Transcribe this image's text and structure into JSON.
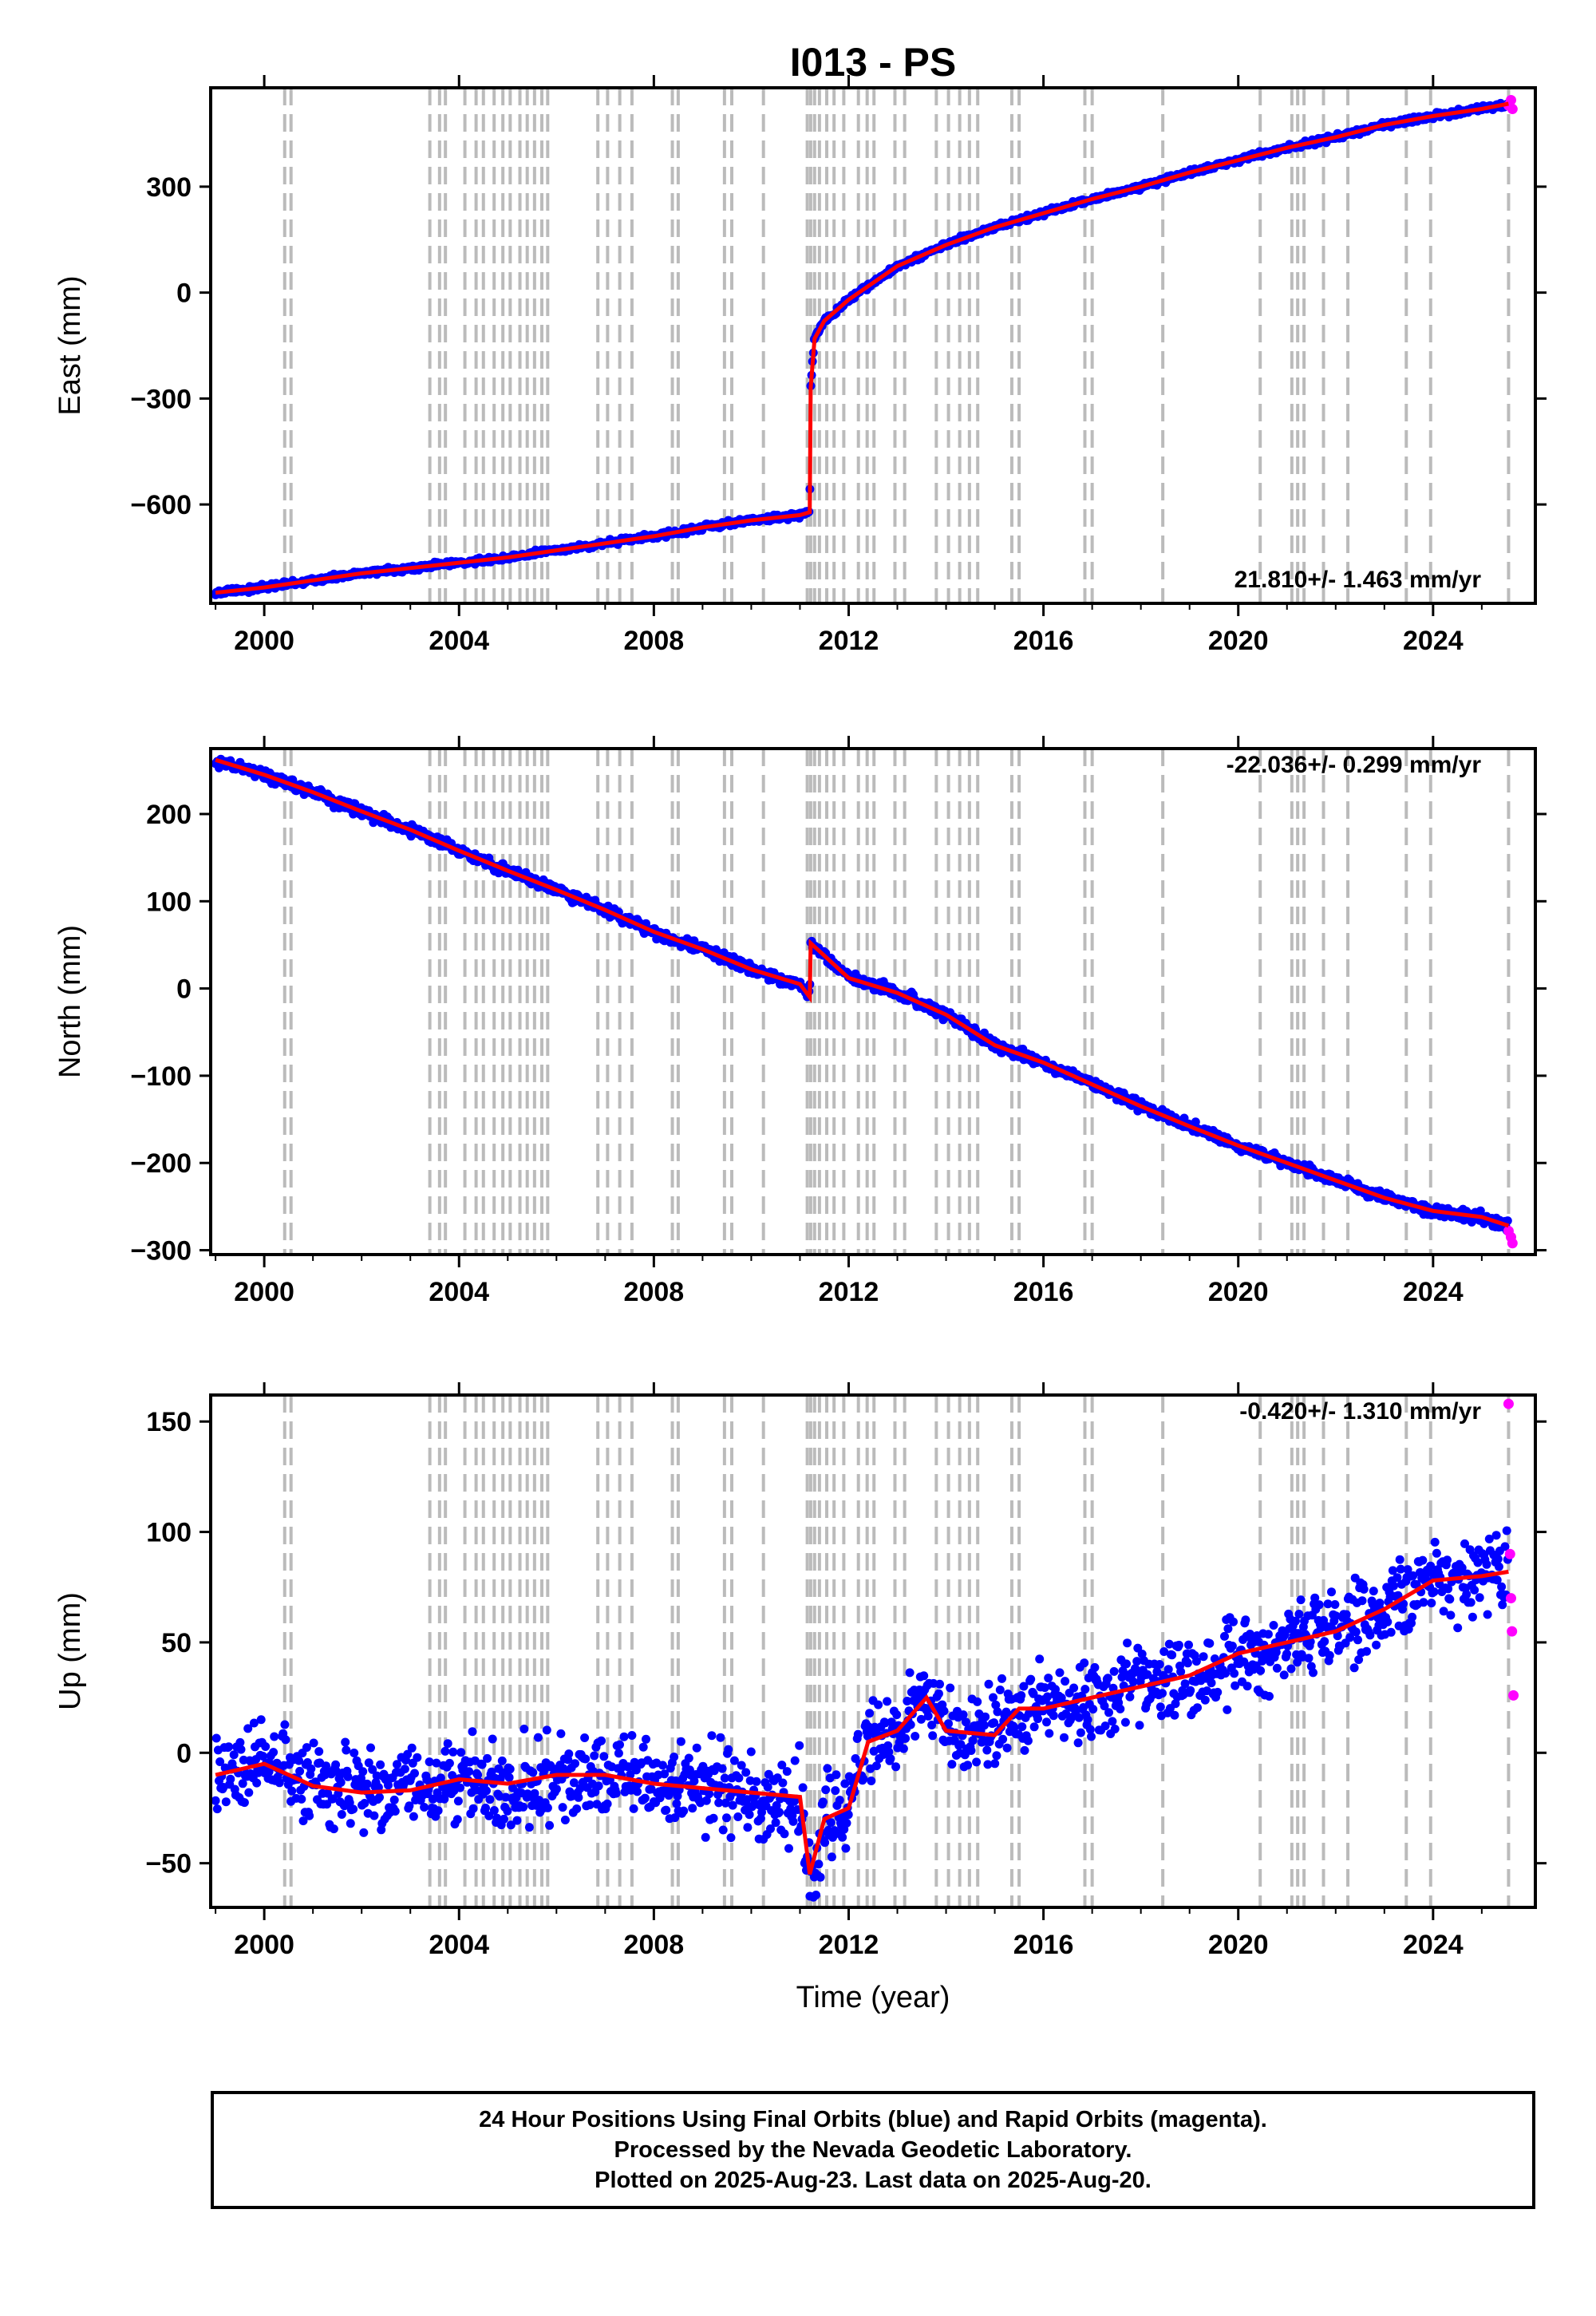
{
  "title": "I013 - PS",
  "xlabel": "Time (year)",
  "x_ticks": [
    2000,
    2004,
    2008,
    2012,
    2016,
    2020,
    2024
  ],
  "xlim": [
    1998.9,
    2026.1
  ],
  "colors": {
    "final": "#0000ff",
    "rapid": "#ff00ff",
    "model": "#ff0000",
    "events": "#bbbbbb"
  },
  "footer": {
    "line1": "24 Hour Positions Using Final Orbits (blue) and Rapid Orbits (magenta).",
    "line2": "Processed by the Nevada Geodetic Laboratory.",
    "line3": "Plotted on 2025-Aug-23. Last data on 2025-Aug-20."
  },
  "chart_data": [
    {
      "type": "scatter",
      "panel": "east",
      "ylabel": "East (mm)",
      "ylim": [
        -880,
        580
      ],
      "y_ticks": [
        -600,
        -300,
        0,
        300
      ],
      "y_tick_labels": [
        "−600",
        "−300",
        "0",
        "300"
      ],
      "rate_label": "21.810+/- 1.463 mm/yr",
      "rate_position": "bottom-right",
      "series": [
        {
          "name": "Final Orbits",
          "color": "#0000ff",
          "x": [
            1999.0,
            2000.0,
            2001.0,
            2002.0,
            2003.0,
            2004.0,
            2005.0,
            2006.0,
            2007.0,
            2008.0,
            2009.0,
            2010.0,
            2011.0,
            2011.2,
            2011.22,
            2011.3,
            2011.5,
            2012.0,
            2013.0,
            2014.0,
            2015.0,
            2016.0,
            2017.0,
            2018.0,
            2019.0,
            2020.0,
            2021.0,
            2022.0,
            2023.0,
            2024.0,
            2025.0,
            2025.55
          ],
          "y": [
            -850,
            -835,
            -815,
            -795,
            -780,
            -765,
            -750,
            -730,
            -710,
            -690,
            -665,
            -645,
            -630,
            -622,
            -270,
            -130,
            -80,
            -20,
            75,
            135,
            185,
            225,
            265,
            300,
            340,
            375,
            410,
            440,
            475,
            500,
            520,
            535
          ]
        },
        {
          "name": "Rapid Orbits",
          "color": "#ff00ff",
          "x": [
            2025.55,
            2025.6,
            2025.63
          ],
          "y": [
            530,
            545,
            520
          ]
        }
      ]
    },
    {
      "type": "scatter",
      "panel": "north",
      "ylabel": "North (mm)",
      "ylim": [
        -305,
        275
      ],
      "y_ticks": [
        -300,
        -200,
        -100,
        0,
        100,
        200
      ],
      "y_tick_labels": [
        "−300",
        "−200",
        "−100",
        "0",
        "100",
        "200"
      ],
      "rate_label": "-22.036+/- 0.299 mm/yr",
      "rate_position": "top-right",
      "series": [
        {
          "name": "Final Orbits",
          "color": "#0000ff",
          "x": [
            1999.0,
            2000.0,
            2001.0,
            2002.0,
            2003.0,
            2004.0,
            2005.0,
            2006.0,
            2007.0,
            2008.0,
            2009.0,
            2010.0,
            2011.0,
            2011.2,
            2011.22,
            2012.0,
            2013.0,
            2014.0,
            2015.0,
            2016.0,
            2017.0,
            2018.0,
            2019.0,
            2020.0,
            2021.0,
            2022.0,
            2023.0,
            2024.0,
            2025.0,
            2025.55
          ],
          "y": [
            262,
            245,
            225,
            203,
            182,
            158,
            135,
            113,
            90,
            65,
            45,
            22,
            5,
            -10,
            52,
            12,
            -5,
            -30,
            -65,
            -85,
            -110,
            -135,
            -158,
            -180,
            -200,
            -220,
            -240,
            -255,
            -262,
            -272
          ]
        },
        {
          "name": "Rapid Orbits",
          "color": "#ff00ff",
          "x": [
            2025.55,
            2025.6,
            2025.63
          ],
          "y": [
            -278,
            -285,
            -292
          ]
        }
      ]
    },
    {
      "type": "scatter",
      "panel": "up",
      "ylabel": "Up (mm)",
      "ylim": [
        -70,
        162
      ],
      "y_ticks": [
        -50,
        0,
        50,
        100,
        150
      ],
      "y_tick_labels": [
        "−50",
        "0",
        "50",
        "100",
        "150"
      ],
      "rate_label": "-0.420+/- 1.310 mm/yr",
      "rate_position": "top-right",
      "series": [
        {
          "name": "Final Orbits",
          "color": "#0000ff",
          "x": [
            1999.0,
            2000.0,
            2001.0,
            2002.0,
            2003.0,
            2004.0,
            2005.0,
            2006.0,
            2007.0,
            2008.0,
            2009.0,
            2010.0,
            2011.0,
            2011.2,
            2011.5,
            2012.0,
            2012.4,
            2013.0,
            2013.6,
            2014.0,
            2015.0,
            2015.5,
            2016.0,
            2017.0,
            2018.0,
            2019.0,
            2020.0,
            2021.0,
            2022.0,
            2023.0,
            2024.0,
            2025.0,
            2025.55
          ],
          "y": [
            -10,
            -5,
            -15,
            -18,
            -17,
            -12,
            -14,
            -10,
            -10,
            -14,
            -16,
            -18,
            -20,
            -55,
            -30,
            -25,
            5,
            10,
            25,
            10,
            8,
            20,
            20,
            25,
            30,
            35,
            45,
            50,
            55,
            65,
            78,
            80,
            82
          ]
        },
        {
          "name": "Rapid Orbits",
          "color": "#ff00ff",
          "x": [
            2025.55,
            2025.58,
            2025.6,
            2025.62,
            2025.65
          ],
          "y": [
            158,
            90,
            70,
            55,
            26
          ]
        }
      ]
    }
  ]
}
